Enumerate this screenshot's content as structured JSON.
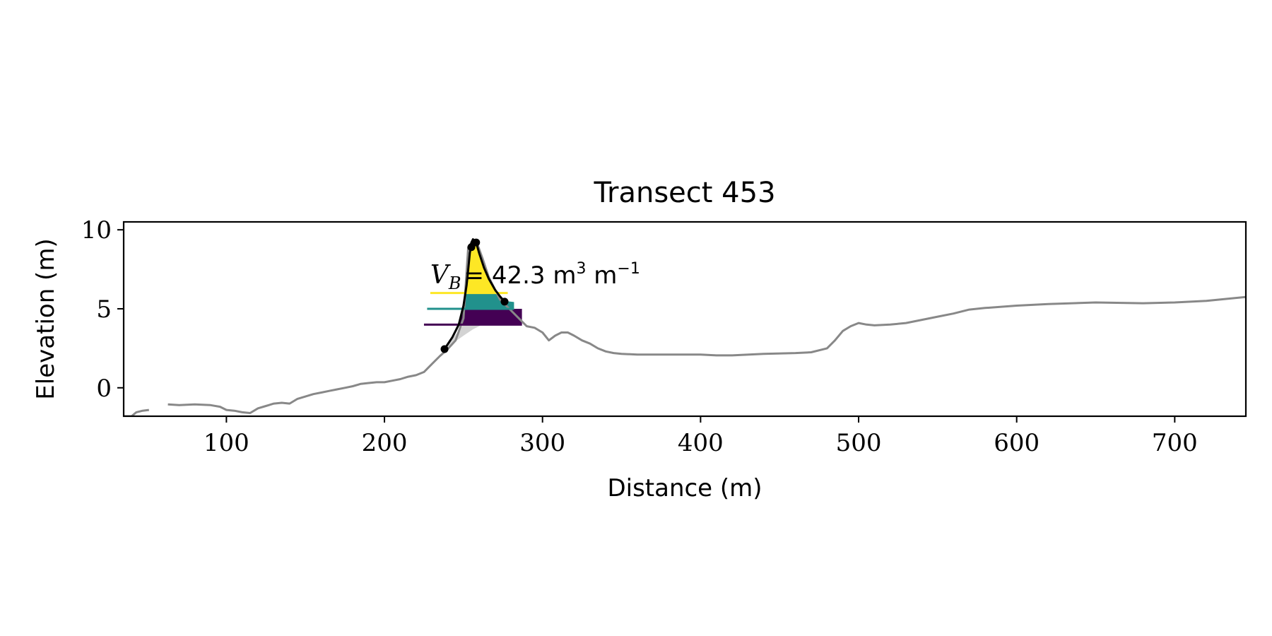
{
  "chart_data": {
    "type": "line",
    "title": "Transect 453",
    "xlabel": "Distance (m)",
    "ylabel": "Elevation (m)",
    "xlim": [
      35,
      745
    ],
    "ylim": [
      -1.8,
      10.5
    ],
    "x_ticks": [
      100,
      200,
      300,
      400,
      500,
      600,
      700
    ],
    "y_ticks": [
      0,
      5,
      10
    ],
    "grid": false,
    "profile": {
      "color": "#888888",
      "segments": [
        {
          "x": [
            35,
            40,
            43,
            47,
            51
          ],
          "y": [
            -1.8,
            -1.8,
            -1.55,
            -1.45,
            -1.4
          ]
        },
        {
          "x": [
            63,
            70,
            80,
            90,
            96,
            100,
            105,
            110,
            115,
            120,
            125,
            130,
            135,
            140,
            145,
            150,
            155,
            160,
            165,
            170,
            175,
            180,
            185,
            190,
            195,
            200,
            205,
            210,
            215,
            220,
            225,
            230,
            235,
            240,
            245,
            250,
            253,
            256,
            258,
            262,
            266,
            270,
            273,
            276,
            280,
            285,
            290,
            295,
            300,
            304,
            308,
            312,
            316,
            320,
            325,
            330,
            335,
            340,
            345,
            350,
            360,
            380,
            400,
            410,
            420,
            440,
            460,
            470,
            480,
            485,
            490,
            495,
            500,
            505,
            510,
            520,
            530,
            540,
            550,
            560,
            570,
            580,
            600,
            620,
            650,
            680,
            700,
            720,
            745
          ],
          "y": [
            -1.05,
            -1.1,
            -1.05,
            -1.1,
            -1.2,
            -1.4,
            -1.45,
            -1.55,
            -1.6,
            -1.3,
            -1.15,
            -1.0,
            -0.95,
            -1.0,
            -0.7,
            -0.55,
            -0.4,
            -0.3,
            -0.2,
            -0.1,
            0.0,
            0.1,
            0.25,
            0.3,
            0.35,
            0.35,
            0.45,
            0.55,
            0.7,
            0.8,
            1.0,
            1.5,
            2.0,
            2.45,
            3.0,
            4.4,
            8.9,
            9.3,
            9.3,
            8.2,
            7.0,
            6.2,
            5.6,
            5.3,
            4.9,
            4.4,
            3.9,
            3.8,
            3.5,
            3.0,
            3.3,
            3.5,
            3.5,
            3.3,
            3.0,
            2.8,
            2.5,
            2.3,
            2.2,
            2.15,
            2.1,
            2.1,
            2.1,
            2.05,
            2.05,
            2.15,
            2.2,
            2.25,
            2.5,
            3.0,
            3.6,
            3.9,
            4.1,
            4.0,
            3.95,
            4.0,
            4.1,
            4.3,
            4.5,
            4.7,
            4.95,
            5.05,
            5.2,
            5.3,
            5.4,
            5.35,
            5.4,
            5.5,
            5.75
          ]
        }
      ]
    },
    "fill_below": {
      "color": "#d3d3d3",
      "x": [
        238,
        250,
        256,
        262,
        268,
        276,
        283
      ],
      "y_upper": [
        2.45,
        4.0,
        4.0,
        4.0,
        4.0,
        4.0,
        4.0
      ],
      "y_lower": [
        2.45,
        3.3,
        3.7,
        4.0,
        4.0,
        4.0,
        4.0
      ]
    },
    "levels": [
      {
        "y": 4.0,
        "x_start": 225,
        "x_end": 287,
        "color": "#440154",
        "fill_top": 5.0
      },
      {
        "y": 5.0,
        "x_start": 227,
        "x_end": 282,
        "color": "#21918c",
        "fill_top": 6.0
      },
      {
        "y": 6.0,
        "x_start": 229,
        "x_end": 278,
        "color": "#fde725",
        "fill_top": 9.3
      }
    ],
    "boundary_line": {
      "color": "#000000",
      "x": [
        238,
        243,
        247,
        250,
        252,
        253,
        254,
        255,
        256,
        258,
        260,
        263,
        266,
        270,
        273,
        276
      ],
      "y": [
        2.45,
        3.2,
        4.0,
        5.2,
        6.5,
        7.5,
        8.5,
        9.2,
        9.4,
        9.2,
        8.5,
        7.6,
        6.9,
        6.2,
        5.8,
        5.45
      ]
    },
    "markers": {
      "color": "#000000",
      "x": [
        238,
        255,
        258,
        276
      ],
      "y": [
        2.45,
        8.9,
        9.2,
        5.45
      ]
    },
    "annotation": {
      "math_symbol": "V",
      "math_subscript": "B",
      "text": "= 42.3 m",
      "superscript_1": "3",
      "unit_2": " m",
      "superscript_2": "−1",
      "anchor_x": 229,
      "anchor_y": 6.6
    }
  }
}
